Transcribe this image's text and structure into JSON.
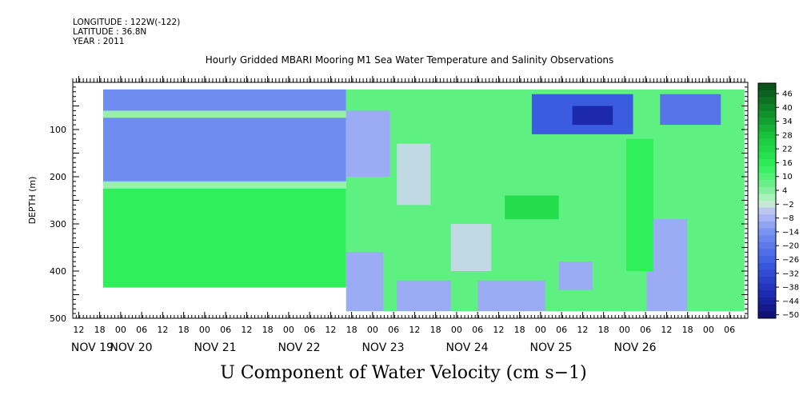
{
  "meta": {
    "longitude": "LONGITUDE : 122W(-122)",
    "latitude": "LATITUDE : 36.8N",
    "year": "YEAR : 2011"
  },
  "chart_data": {
    "type": "heatmap",
    "title": "Hourly Gridded MBARI Mooring M1 Sea Water Temperature and Salinity Observations",
    "xlabel": "U Component of Water Velocity (cm s−1)",
    "ylabel": "DEPTH (m)",
    "yticks": [
      100,
      200,
      300,
      400,
      500
    ],
    "ylim": [
      0,
      500
    ],
    "hour_ticks": [
      "12",
      "18",
      "00",
      "06",
      "12",
      "18",
      "00",
      "06",
      "12",
      "18",
      "00",
      "06",
      "12",
      "18",
      "00",
      "06",
      "12",
      "18",
      "00",
      "06",
      "12",
      "18",
      "00",
      "06",
      "12",
      "18",
      "00",
      "06",
      "12",
      "18",
      "00",
      "06"
    ],
    "day_labels": [
      "NOV 19",
      "NOV 20",
      "NOV 21",
      "NOV 22",
      "NOV 23",
      "NOV 24",
      "NOV 25",
      "NOV 26"
    ],
    "colorbar_labels": [
      "46",
      "40",
      "34",
      "28",
      "22",
      "16",
      "10",
      "4",
      "−2",
      "−8",
      "−14",
      "−20",
      "−26",
      "−32",
      "−38",
      "−44",
      "−50"
    ],
    "colorbar_range": [
      -50,
      52
    ],
    "regions": [
      {
        "x0": 0.045,
        "x1": 0.405,
        "d0": 15,
        "d1": 210,
        "v": -14
      },
      {
        "x0": 0.045,
        "x1": 0.405,
        "d0": 60,
        "d1": 75,
        "v": 4
      },
      {
        "x0": 0.045,
        "x1": 0.405,
        "d0": 210,
        "d1": 225,
        "v": 4
      },
      {
        "x0": 0.045,
        "x1": 0.405,
        "d0": 225,
        "d1": 435,
        "v": 16
      },
      {
        "x0": 0.405,
        "x1": 0.995,
        "d0": 15,
        "d1": 485,
        "v": 10
      },
      {
        "x0": 0.68,
        "x1": 0.83,
        "d0": 25,
        "d1": 110,
        "v": -26
      },
      {
        "x0": 0.74,
        "x1": 0.8,
        "d0": 50,
        "d1": 90,
        "v": -40
      },
      {
        "x0": 0.87,
        "x1": 0.96,
        "d0": 25,
        "d1": 90,
        "v": -20
      },
      {
        "x0": 0.405,
        "x1": 0.47,
        "d0": 60,
        "d1": 200,
        "v": -8
      },
      {
        "x0": 0.48,
        "x1": 0.53,
        "d0": 130,
        "d1": 260,
        "v": -2
      },
      {
        "x0": 0.405,
        "x1": 0.46,
        "d0": 360,
        "d1": 485,
        "v": -8
      },
      {
        "x0": 0.48,
        "x1": 0.56,
        "d0": 420,
        "d1": 485,
        "v": -8
      },
      {
        "x0": 0.56,
        "x1": 0.62,
        "d0": 300,
        "d1": 400,
        "v": -2
      },
      {
        "x0": 0.6,
        "x1": 0.7,
        "d0": 420,
        "d1": 485,
        "v": -8
      },
      {
        "x0": 0.72,
        "x1": 0.77,
        "d0": 380,
        "d1": 440,
        "v": -8
      },
      {
        "x0": 0.85,
        "x1": 0.91,
        "d0": 290,
        "d1": 485,
        "v": -8
      },
      {
        "x0": 0.64,
        "x1": 0.72,
        "d0": 240,
        "d1": 290,
        "v": 22
      },
      {
        "x0": 0.82,
        "x1": 0.86,
        "d0": 120,
        "d1": 400,
        "v": 16
      }
    ],
    "grid": false
  }
}
